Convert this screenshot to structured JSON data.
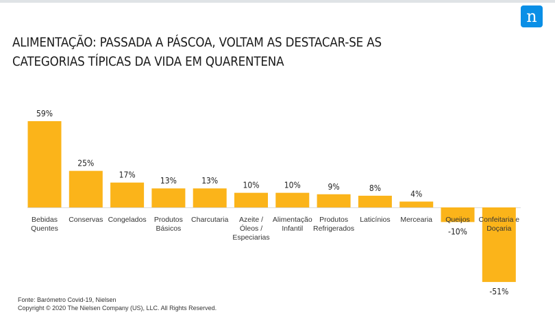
{
  "brand": {
    "logo_letter": "n",
    "logo_color": "#0a8fe6"
  },
  "title": "ALIMENTAÇÃO:  PASSADA A PÁSCOA, VOLTAM AS DESTACAR-SE AS CATEGORIAS TÍPICAS DA VIDA EM QUARENTENA",
  "footer": {
    "source": "Fonte: Barómetro Covid-19, Nielsen",
    "copyright": "Copyright © 2020 The Nielsen Company (US), LLC. All Rights Reserved."
  },
  "chart_data": {
    "type": "bar",
    "title": "",
    "xlabel": "",
    "ylabel": "",
    "bar_color": "#fbb41a",
    "grid": false,
    "legend": "none",
    "ylim": [
      -51,
      59
    ],
    "categories": [
      [
        "Bebidas",
        "Quentes"
      ],
      [
        "Conservas"
      ],
      [
        "Congelados"
      ],
      [
        "Produtos",
        "Básicos"
      ],
      [
        "Charcutaria"
      ],
      [
        "Azeite /",
        "Óleos /",
        "Especiarias"
      ],
      [
        "Alimentação",
        "Infantil"
      ],
      [
        "Produtos",
        "Refrigerados"
      ],
      [
        "Laticínios"
      ],
      [
        "Mercearia"
      ],
      [
        "Queijos"
      ],
      [
        "Confeitaria e",
        "Doçaria"
      ]
    ],
    "values": [
      59,
      25,
      17,
      13,
      13,
      10,
      10,
      9,
      8,
      4,
      -10,
      -51
    ],
    "data_labels": [
      "59%",
      "25%",
      "17%",
      "13%",
      "13%",
      "10%",
      "10%",
      "9%",
      "8%",
      "4%",
      "-10%",
      "-51%"
    ]
  }
}
